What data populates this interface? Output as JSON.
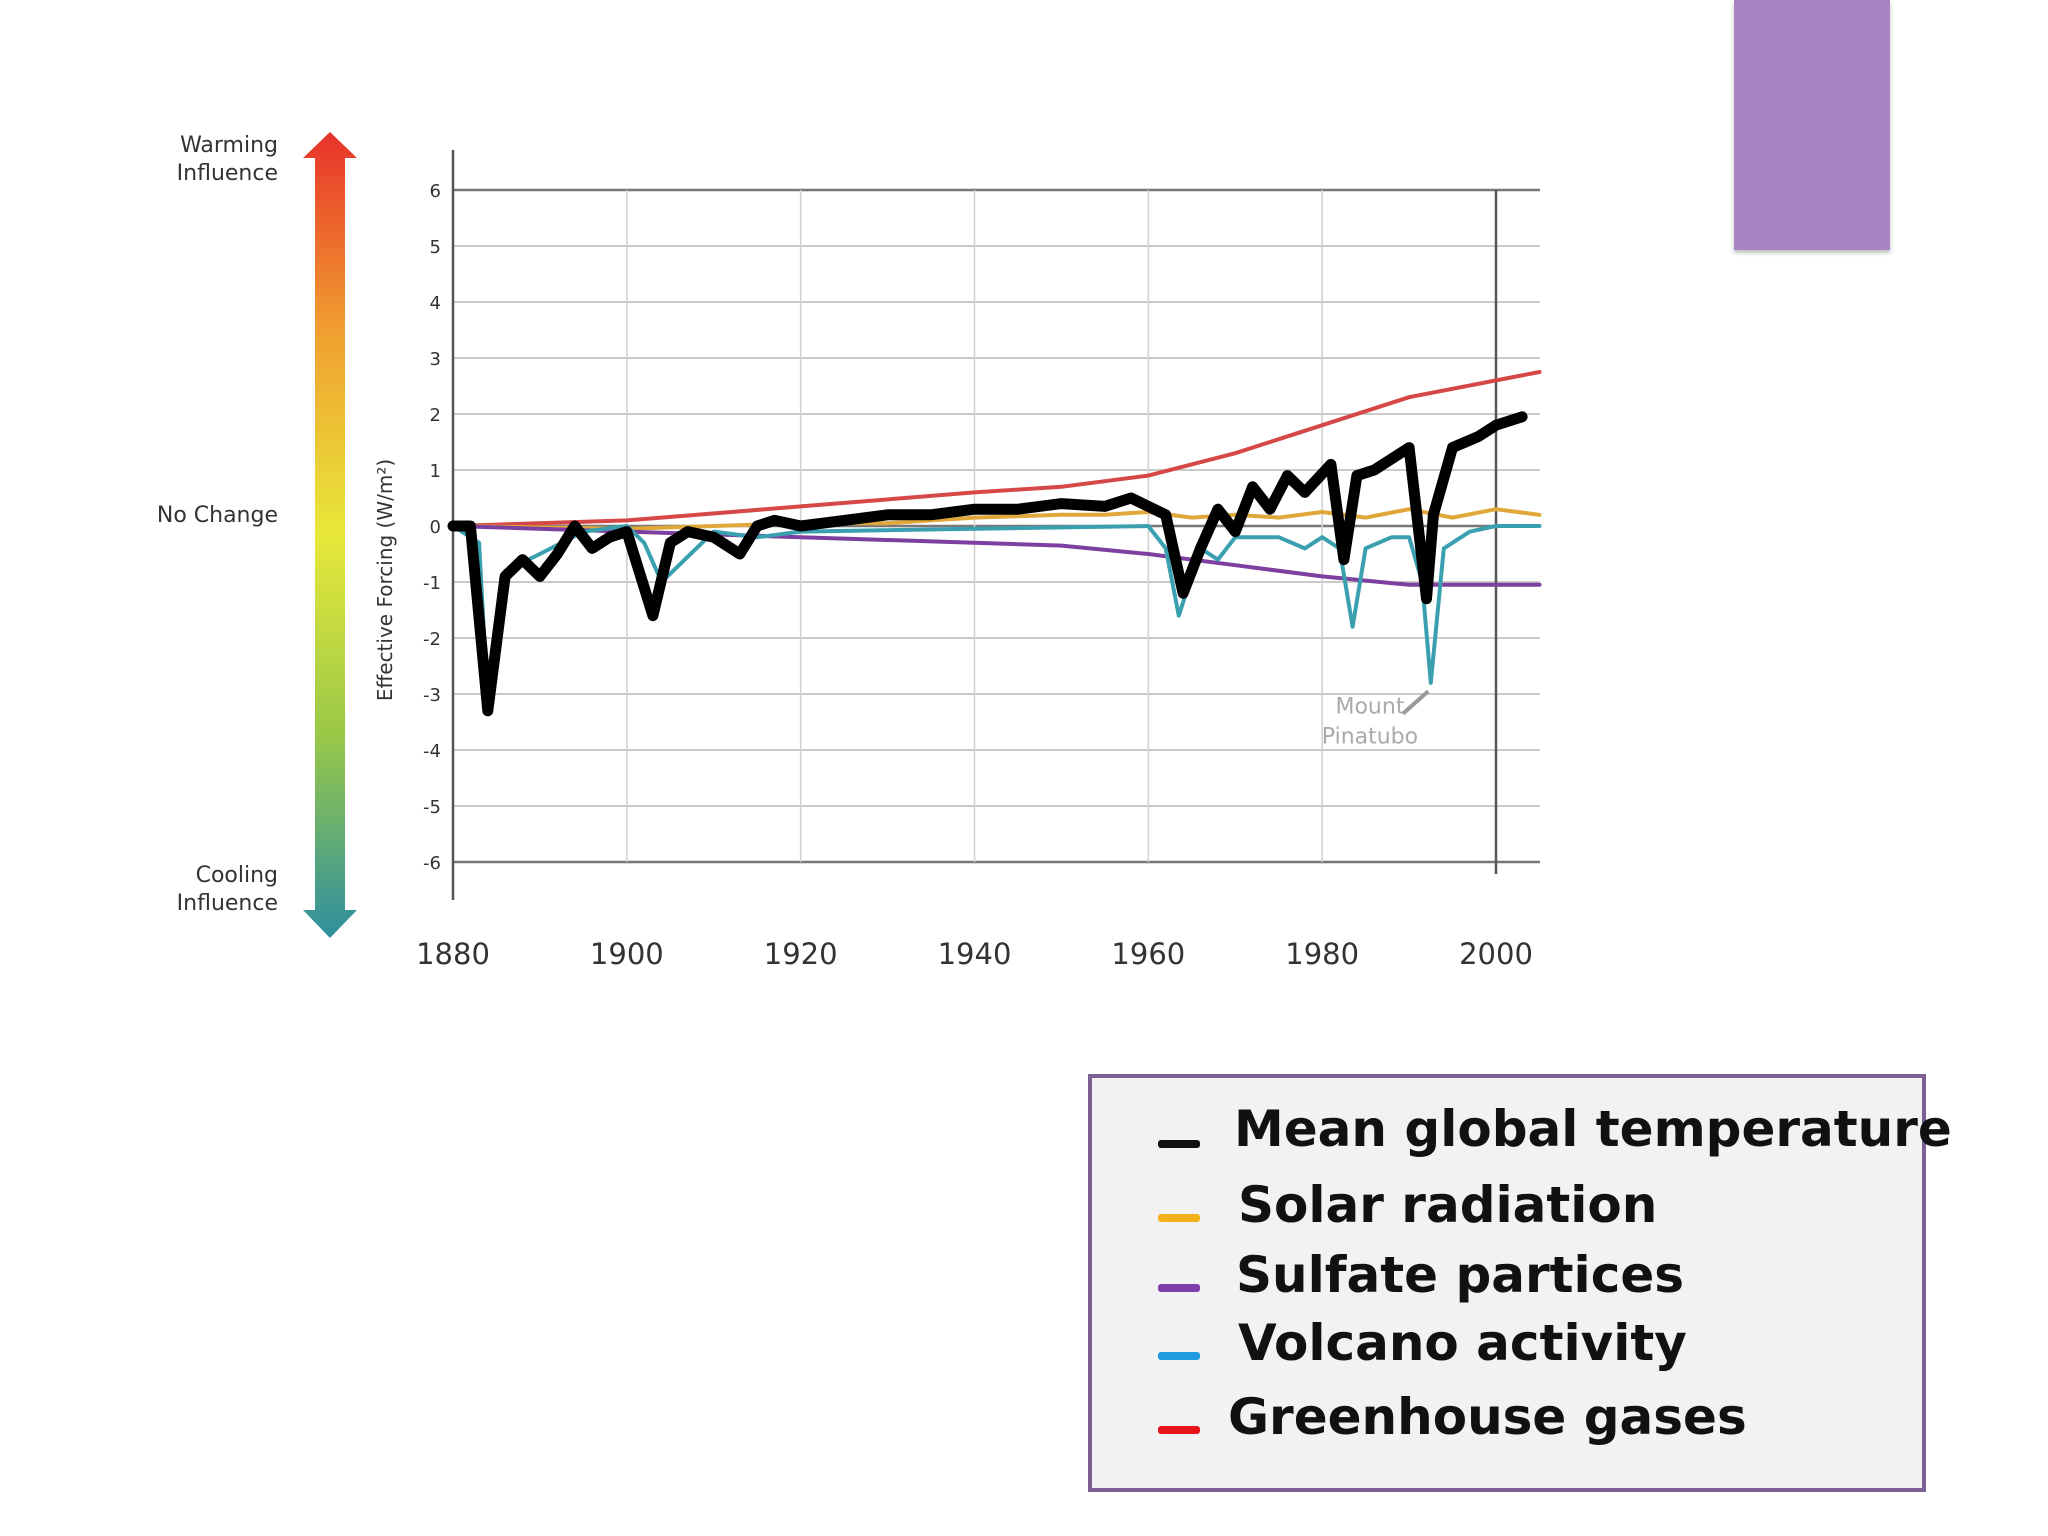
{
  "influence_scale": {
    "top_label": "Warming\nInfluence",
    "middle_label": "No Change",
    "bottom_label": "Cooling\nInfluence",
    "gradient_colors": [
      "#e8322a",
      "#f0a030",
      "#e8e83a",
      "#98c848",
      "#2e8fa0"
    ]
  },
  "chart_data": {
    "type": "line",
    "ylabel": "Effective Forcing (W/m²)",
    "xlim": [
      1880,
      2005
    ],
    "ylim": [
      -6,
      6
    ],
    "x_ticks": [
      1880,
      1900,
      1920,
      1940,
      1960,
      1980,
      2000
    ],
    "y_ticks": [
      6,
      5,
      4,
      3,
      2,
      1,
      0,
      -1,
      -2,
      -3,
      -4,
      -5,
      -6
    ],
    "annotation": "Mount\nPinatubo",
    "series": [
      {
        "name": "Greenhouse gases",
        "color": "#d64848",
        "x": [
          1880,
          1900,
          1920,
          1940,
          1950,
          1960,
          1970,
          1980,
          1990,
          2000,
          2005
        ],
        "y": [
          0.0,
          0.1,
          0.35,
          0.6,
          0.7,
          0.9,
          1.3,
          1.8,
          2.3,
          2.6,
          2.75
        ]
      },
      {
        "name": "Solar radiation",
        "color": "#e0a83a",
        "x": [
          1880,
          1900,
          1910,
          1920,
          1930,
          1940,
          1950,
          1955,
          1960,
          1965,
          1970,
          1975,
          1980,
          1985,
          1990,
          1995,
          2000,
          2005
        ],
        "y": [
          0.0,
          -0.05,
          0.0,
          0.05,
          0.05,
          0.15,
          0.2,
          0.2,
          0.25,
          0.15,
          0.2,
          0.15,
          0.25,
          0.15,
          0.3,
          0.15,
          0.3,
          0.2
        ]
      },
      {
        "name": "Sulfate partices",
        "color": "#7d3fa0",
        "x": [
          1880,
          1900,
          1920,
          1940,
          1950,
          1960,
          1970,
          1980,
          1990,
          2000,
          2005
        ],
        "y": [
          0.0,
          -0.1,
          -0.2,
          -0.3,
          -0.35,
          -0.5,
          -0.7,
          -0.9,
          -1.05,
          -1.05,
          -1.05
        ]
      },
      {
        "name": "Volcano activity",
        "color": "#3aa0b0",
        "x": [
          1880,
          1883,
          1884,
          1886,
          1890,
          1895,
          1900,
          1902,
          1904,
          1910,
          1915,
          1920,
          1960,
          1962,
          1963.5,
          1966,
          1968,
          1970,
          1975,
          1978,
          1980,
          1982,
          1983.5,
          1985,
          1988,
          1990,
          1991.5,
          1992.5,
          1994,
          1997,
          2000,
          2005
        ],
        "y": [
          0.0,
          -0.3,
          -3.2,
          -0.8,
          -0.5,
          -0.1,
          0.0,
          -0.3,
          -1.0,
          -0.1,
          -0.2,
          -0.1,
          0.0,
          -0.4,
          -1.6,
          -0.4,
          -0.6,
          -0.2,
          -0.2,
          -0.4,
          -0.2,
          -0.4,
          -1.8,
          -0.4,
          -0.2,
          -0.2,
          -1.0,
          -2.8,
          -0.4,
          -0.1,
          0.0,
          0.0
        ]
      },
      {
        "name": "Mean global temperature",
        "color": "#000000",
        "x": [
          1880,
          1882,
          1884,
          1886,
          1888,
          1890,
          1892,
          1894,
          1896,
          1898,
          1900,
          1901,
          1903,
          1905,
          1907,
          1910,
          1913,
          1915,
          1917,
          1920,
          1925,
          1930,
          1935,
          1940,
          1945,
          1950,
          1955,
          1958,
          1962,
          1964,
          1966,
          1968,
          1970,
          1972,
          1974,
          1976,
          1978,
          1981,
          1982.5,
          1984,
          1986,
          1990,
          1992,
          1992.8,
          1995,
          1998,
          2000,
          2003
        ],
        "y": [
          0.0,
          0.0,
          -3.3,
          -0.9,
          -0.6,
          -0.9,
          -0.5,
          0.0,
          -0.4,
          -0.2,
          -0.1,
          -0.6,
          -1.6,
          -0.3,
          -0.1,
          -0.2,
          -0.5,
          0.0,
          0.1,
          0.0,
          0.1,
          0.2,
          0.2,
          0.3,
          0.3,
          0.4,
          0.35,
          0.5,
          0.2,
          -1.2,
          -0.4,
          0.3,
          -0.1,
          0.7,
          0.3,
          0.9,
          0.6,
          1.1,
          -0.6,
          0.9,
          1.0,
          1.4,
          -1.3,
          0.2,
          1.4,
          1.6,
          1.8,
          1.95
        ]
      }
    ]
  },
  "legend": {
    "items": [
      {
        "label": "Mean global temperature",
        "color": "#111111"
      },
      {
        "label": "Solar radiation",
        "color": "#f2b21a"
      },
      {
        "label": "Sulfate partices",
        "color": "#7d3fa8"
      },
      {
        "label": "Volcano activity",
        "color": "#1e9be0"
      },
      {
        "label": "Greenhouse gases",
        "color": "#e8141c"
      }
    ]
  }
}
